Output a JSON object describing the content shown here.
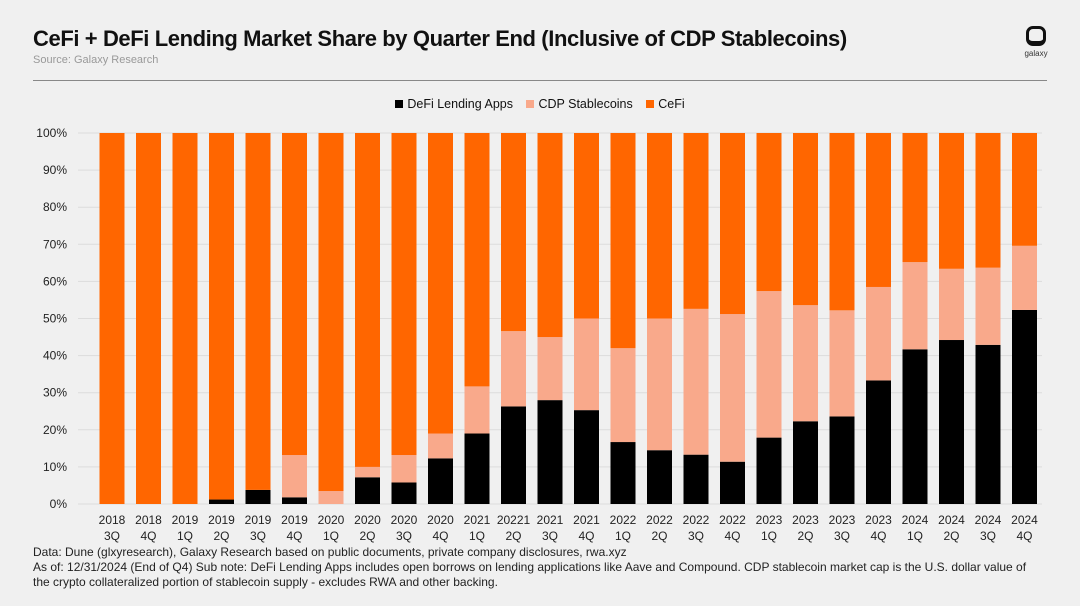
{
  "header": {
    "title": "CeFi + DeFi Lending Market Share by Quarter End (Inclusive of CDP Stablecoins)",
    "subtitle": "Source: Galaxy Research",
    "logo_text": "galaxy"
  },
  "footer": {
    "line1": "Data: Dune (glxyresearch), Galaxy Research based on public documents, private company disclosures, rwa.xyz",
    "line2": "As of: 12/31/2024 (End of Q4)   Sub note: DeFi Lending Apps includes open borrows on lending applications like Aave and Compound. CDP stablecoin market cap is the U.S. dollar value of the crypto collateralized portion of stablecoin supply - excludes RWA and other backing."
  },
  "chart_data": {
    "type": "bar",
    "stacked": true,
    "title": "CeFi + DeFi Lending Market Share by Quarter End (Inclusive of CDP Stablecoins)",
    "xlabel": "",
    "ylabel": "",
    "ylim": [
      0,
      100
    ],
    "yticks": [
      "0%",
      "10%",
      "20%",
      "30%",
      "40%",
      "50%",
      "60%",
      "70%",
      "80%",
      "90%",
      "100%"
    ],
    "grid": true,
    "legend_position": "top-center",
    "categories": [
      [
        "2018",
        "3Q"
      ],
      [
        "2018",
        "4Q"
      ],
      [
        "2019",
        "1Q"
      ],
      [
        "2019",
        "2Q"
      ],
      [
        "2019",
        "3Q"
      ],
      [
        "2019",
        "4Q"
      ],
      [
        "2020",
        "1Q"
      ],
      [
        "2020",
        "2Q"
      ],
      [
        "2020",
        "3Q"
      ],
      [
        "2020",
        "4Q"
      ],
      [
        "2021",
        "1Q"
      ],
      [
        "20221",
        "2Q"
      ],
      [
        "2021",
        "3Q"
      ],
      [
        "2021",
        "4Q"
      ],
      [
        "2022",
        "1Q"
      ],
      [
        "2022",
        "2Q"
      ],
      [
        "2022",
        "3Q"
      ],
      [
        "2022",
        "4Q"
      ],
      [
        "2023",
        "1Q"
      ],
      [
        "2023",
        "2Q"
      ],
      [
        "2023",
        "3Q"
      ],
      [
        "2023",
        "4Q"
      ],
      [
        "2024",
        "1Q"
      ],
      [
        "2024",
        "2Q"
      ],
      [
        "2024",
        "3Q"
      ],
      [
        "2024",
        "4Q"
      ]
    ],
    "series": [
      {
        "name": "DeFi Lending Apps",
        "color": "#000000",
        "values": [
          0,
          0,
          0,
          1.2,
          3.8,
          1.8,
          0,
          7.2,
          5.8,
          12.3,
          19,
          26.3,
          28,
          25.3,
          16.7,
          14.5,
          13.3,
          11.4,
          17.9,
          22.3,
          23.6,
          33.3,
          41.7,
          44.2,
          42.9,
          52.3
        ]
      },
      {
        "name": "CDP Stablecoins",
        "color": "#f9a98b",
        "values": [
          0,
          0,
          0,
          0,
          0,
          11.4,
          3.5,
          2.8,
          7.4,
          6.7,
          12.7,
          20.3,
          17,
          24.7,
          25.3,
          35.5,
          39.3,
          39.8,
          39.5,
          31.3,
          28.6,
          25.2,
          23.5,
          19.2,
          20.8,
          17.3
        ]
      },
      {
        "name": "CeFi",
        "color": "#ff6600",
        "values": [
          100,
          100,
          100,
          98.8,
          96.2,
          86.8,
          96.5,
          90,
          86.8,
          81,
          68.3,
          53.4,
          55,
          50,
          58,
          50,
          47.4,
          48.8,
          42.6,
          46.4,
          47.8,
          41.5,
          34.8,
          36.6,
          36.3,
          30.4
        ]
      }
    ]
  }
}
